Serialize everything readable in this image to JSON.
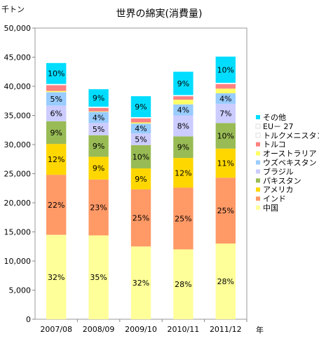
{
  "chart_data": {
    "type": "bar",
    "stacked": true,
    "title": "世界の綿実(消費量)",
    "ylabel": "千トン",
    "xlabel": "年",
    "ylim": [
      0,
      50000
    ],
    "yticks": [
      "0",
      "5,000",
      "10,000",
      "15,000",
      "20,000",
      "25,000",
      "30,000",
      "35,000",
      "40,000",
      "45,000",
      "50,000"
    ],
    "categories": [
      "2007/08",
      "2008/09",
      "2009/10",
      "2010/11",
      "2011/12"
    ],
    "grid": false,
    "legend_position": "right",
    "series": [
      {
        "name": "中国",
        "color": "#FFFF99",
        "values": [
          14500,
          14400,
          12500,
          12000,
          13000
        ],
        "labels": [
          "32%",
          "35%",
          "32%",
          "28%",
          "28%"
        ]
      },
      {
        "name": "インド",
        "color": "#FF9966",
        "values": [
          10300,
          9600,
          9800,
          10600,
          11300
        ],
        "labels": [
          "22%",
          "23%",
          "25%",
          "25%",
          "25%"
        ]
      },
      {
        "name": "アメリカ",
        "color": "#FFD700",
        "values": [
          5300,
          3900,
          3600,
          5100,
          5000
        ],
        "labels": [
          "12%",
          "9%",
          "9%",
          "12%",
          "11%"
        ]
      },
      {
        "name": "パキスタン",
        "color": "#99BB55",
        "values": [
          3900,
          3700,
          4000,
          3700,
          4400
        ],
        "labels": [
          "9%",
          "9%",
          "10%",
          "9%",
          "10%"
        ]
      },
      {
        "name": "ブラジル",
        "color": "#CCCCFF",
        "values": [
          2700,
          2100,
          2000,
          3600,
          3300
        ],
        "labels": [
          "6%",
          "5%",
          "5%",
          "8%",
          "7%"
        ]
      },
      {
        "name": "ウズベキスタン",
        "color": "#99CCFF",
        "values": [
          2300,
          1900,
          1700,
          1900,
          1800
        ],
        "labels": [
          "5%",
          "4%",
          "4%",
          "4%",
          "4%"
        ]
      },
      {
        "name": "オーストラリア",
        "color": "#FFFF66",
        "values": [
          200,
          100,
          200,
          800,
          800
        ],
        "labels": [
          "",
          "",
          "",
          "",
          ""
        ]
      },
      {
        "name": "トルコ",
        "color": "#FF8080",
        "values": [
          1000,
          600,
          700,
          600,
          800
        ],
        "labels": [
          "",
          "",
          "",
          "",
          ""
        ]
      },
      {
        "name": "トルクメニスタン",
        "color": "#FFFFFF",
        "values": [
          100,
          100,
          100,
          100,
          100
        ],
        "labels": [
          "",
          "",
          "",
          "",
          ""
        ]
      },
      {
        "name": "EU－ 27",
        "color": "#FFFFFF",
        "values": [
          100,
          100,
          100,
          100,
          100
        ],
        "labels": [
          "",
          "",
          "",
          "",
          ""
        ]
      },
      {
        "name": "その他",
        "color": "#00DDFF",
        "values": [
          3600,
          3000,
          3600,
          4000,
          4500
        ],
        "labels": [
          "10%",
          "9%",
          "9%",
          "9%",
          "10%"
        ]
      }
    ]
  }
}
